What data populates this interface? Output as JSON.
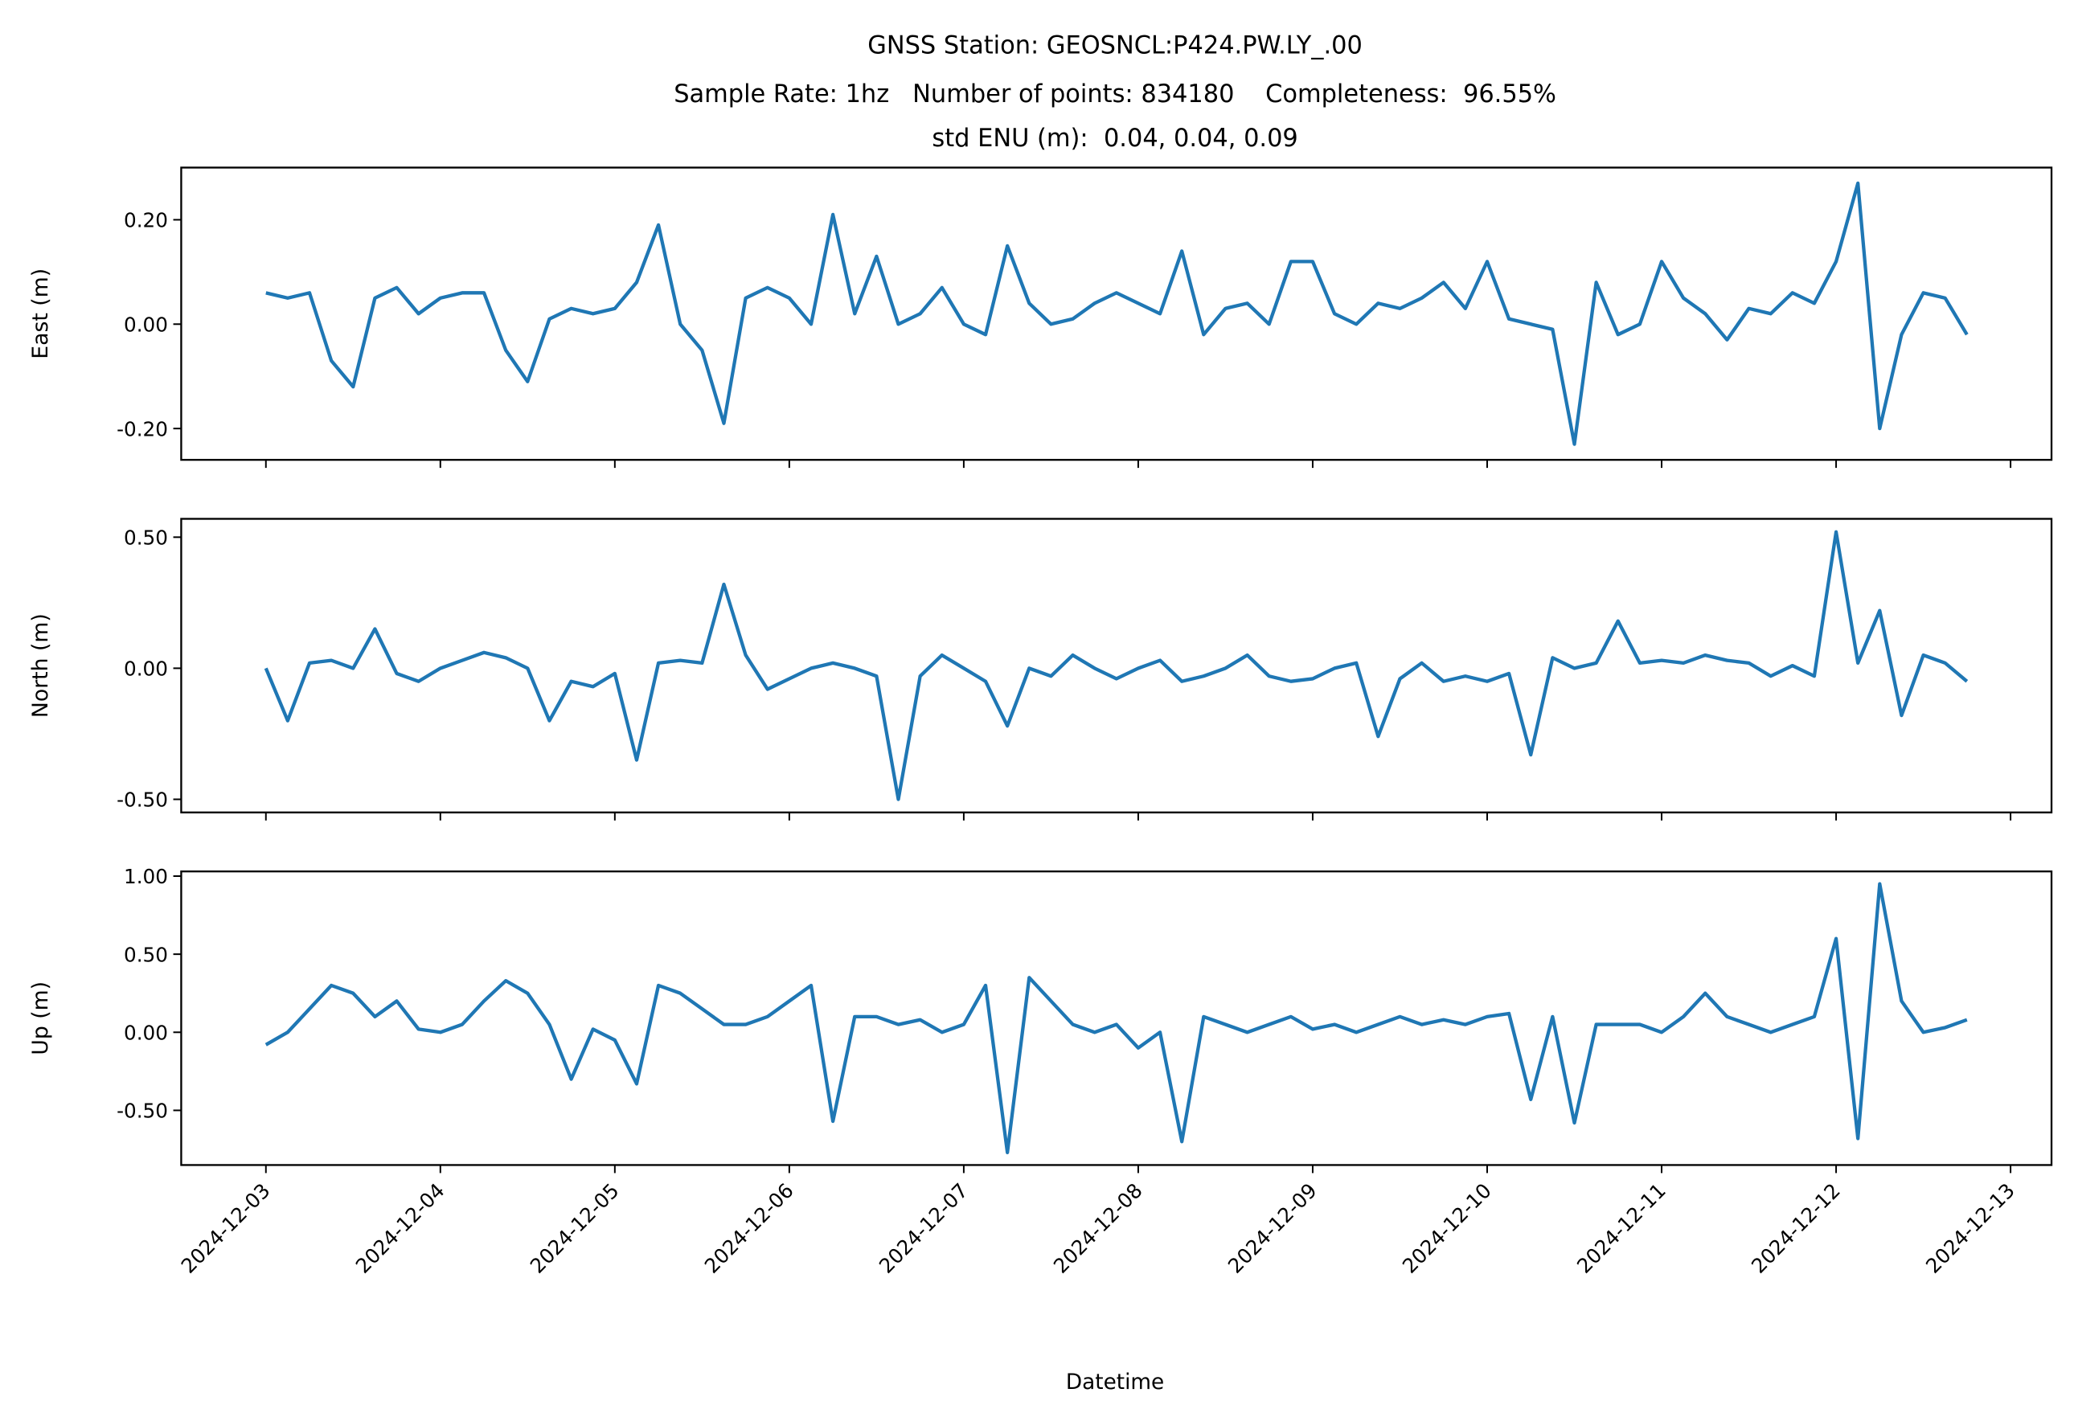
{
  "chart_data": {
    "type": "line",
    "title": [
      "GNSS Station: GEOSNCL:P424.PW.LY_.00",
      "Sample Rate: 1hz   Number of points: 834180    Completeness:  96.55%",
      "std ENU (m):  0.04, 0.04, 0.09"
    ],
    "xlabel": "Datetime",
    "color": "#1f77b4",
    "xlim": [
      "2024-12-02T12:21",
      "2024-12-13T05:38"
    ],
    "xticks": [
      "2024-12-03",
      "2024-12-04",
      "2024-12-05",
      "2024-12-06",
      "2024-12-07",
      "2024-12-08",
      "2024-12-09",
      "2024-12-10",
      "2024-12-11",
      "2024-12-12",
      "2024-12-13"
    ],
    "x": [
      "2024-12-03T00:00",
      "2024-12-03T03:00",
      "2024-12-03T06:00",
      "2024-12-03T09:00",
      "2024-12-03T12:00",
      "2024-12-03T15:00",
      "2024-12-03T18:00",
      "2024-12-03T21:00",
      "2024-12-04T00:00",
      "2024-12-04T03:00",
      "2024-12-04T06:00",
      "2024-12-04T09:00",
      "2024-12-04T12:00",
      "2024-12-04T15:00",
      "2024-12-04T18:00",
      "2024-12-04T21:00",
      "2024-12-05T00:00",
      "2024-12-05T03:00",
      "2024-12-05T06:00",
      "2024-12-05T09:00",
      "2024-12-05T12:00",
      "2024-12-05T15:00",
      "2024-12-05T18:00",
      "2024-12-05T21:00",
      "2024-12-06T00:00",
      "2024-12-06T03:00",
      "2024-12-06T06:00",
      "2024-12-06T09:00",
      "2024-12-06T12:00",
      "2024-12-06T15:00",
      "2024-12-06T18:00",
      "2024-12-06T21:00",
      "2024-12-07T00:00",
      "2024-12-07T03:00",
      "2024-12-07T06:00",
      "2024-12-07T09:00",
      "2024-12-07T12:00",
      "2024-12-07T15:00",
      "2024-12-07T18:00",
      "2024-12-07T21:00",
      "2024-12-08T00:00",
      "2024-12-08T03:00",
      "2024-12-08T06:00",
      "2024-12-08T09:00",
      "2024-12-08T12:00",
      "2024-12-08T15:00",
      "2024-12-08T18:00",
      "2024-12-08T21:00",
      "2024-12-09T00:00",
      "2024-12-09T03:00",
      "2024-12-09T06:00",
      "2024-12-09T09:00",
      "2024-12-09T12:00",
      "2024-12-09T15:00",
      "2024-12-09T18:00",
      "2024-12-09T21:00",
      "2024-12-10T00:00",
      "2024-12-10T03:00",
      "2024-12-10T06:00",
      "2024-12-10T09:00",
      "2024-12-10T12:00",
      "2024-12-10T15:00",
      "2024-12-10T18:00",
      "2024-12-10T21:00",
      "2024-12-11T00:00",
      "2024-12-11T03:00",
      "2024-12-11T06:00",
      "2024-12-11T09:00",
      "2024-12-11T12:00",
      "2024-12-11T15:00",
      "2024-12-11T18:00",
      "2024-12-11T21:00",
      "2024-12-12T00:00",
      "2024-12-12T03:00",
      "2024-12-12T06:00",
      "2024-12-12T09:00",
      "2024-12-12T12:00",
      "2024-12-12T15:00",
      "2024-12-12T18:00"
    ],
    "panels": [
      {
        "ylabel": "East (m)",
        "ylim": [
          -0.26,
          0.3
        ],
        "yticks": [
          {
            "value": 0.2,
            "label": "0.20"
          },
          {
            "value": 0,
            "label": "0.00"
          },
          {
            "value": -0.2,
            "label": "-0.20"
          }
        ],
        "values": [
          0.06,
          0.05,
          0.06,
          -0.07,
          -0.12,
          0.05,
          0.07,
          0.02,
          0.05,
          0.06,
          0.06,
          -0.05,
          -0.11,
          0.01,
          0.03,
          0.02,
          0.03,
          0.08,
          0.19,
          0.0,
          -0.05,
          -0.19,
          0.05,
          0.07,
          0.05,
          0.0,
          0.21,
          0.02,
          0.13,
          0.0,
          0.02,
          0.07,
          0.0,
          -0.02,
          0.15,
          0.04,
          0.0,
          0.01,
          0.04,
          0.06,
          0.04,
          0.02,
          0.14,
          -0.02,
          0.03,
          0.04,
          0.0,
          0.12,
          0.12,
          0.02,
          0.0,
          0.04,
          0.03,
          0.05,
          0.08,
          0.03,
          0.12,
          0.01,
          0.0,
          -0.01,
          -0.23,
          0.08,
          -0.02,
          0.0,
          0.12,
          0.05,
          0.02,
          -0.03,
          0.03,
          0.02,
          0.06,
          0.04,
          0.12,
          0.27,
          -0.2,
          -0.02,
          0.06,
          0.05,
          -0.02
        ]
      },
      {
        "ylabel": "North (m)",
        "ylim": [
          -0.55,
          0.57
        ],
        "yticks": [
          {
            "value": 0.5,
            "label": "0.50"
          },
          {
            "value": 0,
            "label": "0.00"
          },
          {
            "value": -0.5,
            "label": "-0.50"
          }
        ],
        "values": [
          0.0,
          -0.2,
          0.02,
          0.03,
          0.0,
          0.15,
          -0.02,
          -0.05,
          0.0,
          0.03,
          0.06,
          0.04,
          0.0,
          -0.2,
          -0.05,
          -0.07,
          -0.02,
          -0.35,
          0.02,
          0.03,
          0.02,
          0.32,
          0.05,
          -0.08,
          -0.04,
          0.0,
          0.02,
          0.0,
          -0.03,
          -0.5,
          -0.03,
          0.05,
          0.0,
          -0.05,
          -0.22,
          0.0,
          -0.03,
          0.05,
          0.0,
          -0.04,
          0.0,
          0.03,
          -0.05,
          -0.03,
          0.0,
          0.05,
          -0.03,
          -0.05,
          -0.04,
          0.0,
          0.02,
          -0.26,
          -0.04,
          0.02,
          -0.05,
          -0.03,
          -0.05,
          -0.02,
          -0.33,
          0.04,
          0.0,
          0.02,
          0.18,
          0.02,
          0.03,
          0.02,
          0.05,
          0.03,
          0.02,
          -0.03,
          0.01,
          -0.03,
          0.52,
          0.02,
          0.22,
          -0.18,
          0.05,
          0.02,
          -0.05
        ]
      },
      {
        "ylabel": "Up (m)",
        "ylim": [
          -0.85,
          1.03
        ],
        "yticks": [
          {
            "value": 1,
            "label": "1.00"
          },
          {
            "value": 0.5,
            "label": "0.50"
          },
          {
            "value": 0,
            "label": "0.00"
          },
          {
            "value": -0.5,
            "label": "-0.50"
          }
        ],
        "values": [
          -0.08,
          0.0,
          0.15,
          0.3,
          0.25,
          0.1,
          0.2,
          0.02,
          0.0,
          0.05,
          0.2,
          0.33,
          0.25,
          0.05,
          -0.3,
          0.02,
          -0.05,
          -0.33,
          0.3,
          0.25,
          0.15,
          0.05,
          0.05,
          0.1,
          0.2,
          0.3,
          -0.57,
          0.1,
          0.1,
          0.05,
          0.08,
          0.0,
          0.05,
          0.3,
          -0.77,
          0.35,
          0.2,
          0.05,
          0.0,
          0.05,
          -0.1,
          0.0,
          -0.7,
          0.1,
          0.05,
          0.0,
          0.05,
          0.1,
          0.02,
          0.05,
          0.0,
          0.05,
          0.1,
          0.05,
          0.08,
          0.05,
          0.1,
          0.12,
          -0.43,
          0.1,
          -0.58,
          0.05,
          0.05,
          0.05,
          0.0,
          0.1,
          0.25,
          0.1,
          0.05,
          0.0,
          0.05,
          0.1,
          0.6,
          -0.68,
          0.95,
          0.2,
          0.0,
          0.03,
          0.08
        ]
      }
    ]
  }
}
